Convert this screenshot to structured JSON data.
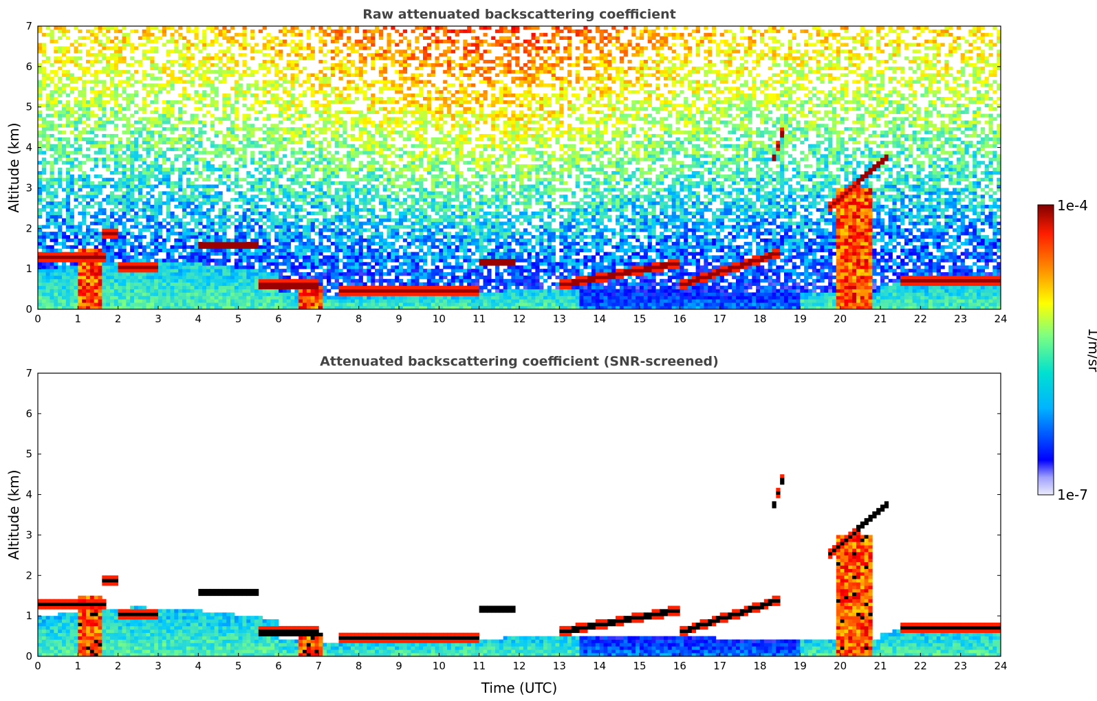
{
  "chart_data": [
    {
      "type": "heatmap",
      "title": "Raw attenuated backscattering coefficient",
      "xlabel": "",
      "ylabel": "Altitude (km)",
      "xlim": [
        0,
        24
      ],
      "ylim": [
        0,
        7
      ],
      "x_ticks": [
        "0",
        "1",
        "2",
        "3",
        "4",
        "5",
        "6",
        "7",
        "8",
        "9",
        "10",
        "11",
        "12",
        "13",
        "14",
        "15",
        "16",
        "17",
        "18",
        "19",
        "20",
        "21",
        "22",
        "23",
        "24"
      ],
      "y_ticks": [
        "0",
        "1",
        "2",
        "3",
        "4",
        "5",
        "6",
        "7"
      ],
      "background": "noisy molecular signal everywhere; higher values aloft near 8-14 UTC",
      "cloud_layers": [
        {
          "time": [
            0,
            1.7
          ],
          "altitude_km": [
            1.1,
            1.5
          ]
        },
        {
          "time": [
            1.6,
            2.0
          ],
          "altitude_km": [
            1.7,
            2.05
          ]
        },
        {
          "time": [
            2.0,
            3.0
          ],
          "altitude_km": [
            0.9,
            1.2
          ]
        },
        {
          "time": [
            4.0,
            5.5
          ],
          "altitude_km": [
            1.45,
            1.7
          ]
        },
        {
          "time": [
            5.5,
            7.0
          ],
          "altitude_km": [
            0.5,
            0.7
          ]
        },
        {
          "time": [
            7.5,
            11.0
          ],
          "altitude_km": [
            0.38,
            0.55
          ]
        },
        {
          "time": [
            11.0,
            11.9
          ],
          "altitude_km": [
            1.1,
            1.25
          ]
        },
        {
          "time": [
            13.0,
            16.0
          ],
          "altitude_km": [
            0.6,
            1.15
          ]
        },
        {
          "time": [
            16.0,
            18.5
          ],
          "altitude_km": [
            0.6,
            1.4
          ]
        },
        {
          "time": [
            18.3,
            18.6
          ],
          "altitude_km": [
            3.6,
            4.5
          ]
        },
        {
          "time": [
            19.7,
            21.2
          ],
          "altitude_km": [
            2.5,
            3.8
          ]
        },
        {
          "time": [
            21.5,
            24.0
          ],
          "altitude_km": [
            0.6,
            0.8
          ]
        }
      ],
      "precipitation_fallstreaks": [
        {
          "time": [
            1.0,
            1.6
          ],
          "altitude_km": [
            0,
            1.5
          ]
        },
        {
          "time": [
            6.5,
            7.1
          ],
          "altitude_km": [
            0,
            0.6
          ]
        },
        {
          "time": [
            19.9,
            20.8
          ],
          "altitude_km": [
            0,
            3.0
          ]
        }
      ]
    },
    {
      "type": "heatmap",
      "title": "Attenuated backscattering coefficient (SNR-screened)",
      "xlabel": "Time (UTC)",
      "ylabel": "Altitude (km)",
      "xlim": [
        0,
        24
      ],
      "ylim": [
        0,
        7
      ],
      "x_ticks": [
        "0",
        "1",
        "2",
        "3",
        "4",
        "5",
        "6",
        "7",
        "8",
        "9",
        "10",
        "11",
        "12",
        "13",
        "14",
        "15",
        "16",
        "17",
        "18",
        "19",
        "20",
        "21",
        "22",
        "23",
        "24"
      ],
      "y_ticks": [
        "0",
        "1",
        "2",
        "3",
        "4",
        "5",
        "6",
        "7"
      ],
      "background": "white (screened) above the boundary layer and clouds"
    }
  ],
  "colorbar": {
    "label": "1/m/sr",
    "max_label": "1e-4",
    "min_label": "1e-7",
    "scale": "log",
    "colormap": [
      "#e6e6fa",
      "#0000ff",
      "#00c8ff",
      "#7fff7f",
      "#ffff00",
      "#ff7f00",
      "#ff0000",
      "#800000"
    ]
  }
}
